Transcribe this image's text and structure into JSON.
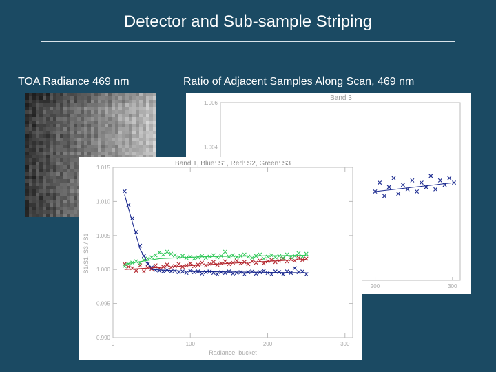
{
  "slide": {
    "title": "Detector and Sub-sample Striping",
    "caption_left": "TOA Radiance 469 nm",
    "caption_right": "Ratio of Adjacent Samples Along Scan,  469 nm"
  },
  "colors": {
    "background": "#1b4a63",
    "s1_blue": "#1b2a8f",
    "s2_red": "#b3262e",
    "s3_green": "#32c85a"
  },
  "chart_data": [
    {
      "type": "scatter",
      "title": "Band 3",
      "xlabel": "",
      "ylabel": "",
      "ylim": [
        0.998,
        1.006
      ],
      "y_ticks": [
        "1.006",
        "1.004"
      ],
      "xlim": [
        0,
        310
      ],
      "x_ticks": [
        "200",
        "300"
      ],
      "series": [
        {
          "color": "#1b2a8f",
          "marker": "x",
          "x": [
            200,
            206,
            212,
            218,
            224,
            230,
            236,
            242,
            248,
            254,
            260,
            266,
            272,
            278,
            284,
            290,
            296,
            302
          ],
          "y": [
            1.002,
            1.0024,
            1.0018,
            1.0022,
            1.0026,
            1.0019,
            1.0023,
            1.0021,
            1.0025,
            1.002,
            1.0024,
            1.0022,
            1.0027,
            1.0021,
            1.0025,
            1.0023,
            1.0026,
            1.0024
          ]
        }
      ],
      "trend": [
        [
          200,
          1.002
        ],
        [
          302,
          1.0024
        ]
      ]
    },
    {
      "type": "scatter",
      "title": "Band 1, Blue: S1, Red: S2, Green: S3",
      "xlabel": "Radiance, bucket",
      "ylabel": "S1/S1, S3 / S1",
      "xlim": [
        0,
        310
      ],
      "ylim": [
        0.99,
        1.015
      ],
      "x_ticks": [
        0,
        100,
        200,
        300
      ],
      "y_ticks": [
        0.99,
        0.995,
        1.0,
        1.005,
        1.01,
        1.015
      ],
      "y_tick_labels": [
        "0.990",
        "0.995",
        "1.000",
        "1.005",
        "1.010",
        "1.015"
      ],
      "series": [
        {
          "color": "#1b2a8f",
          "marker": "x",
          "x": [
            15,
            20,
            25,
            30,
            35,
            40,
            45,
            50,
            55,
            60,
            65,
            70,
            75,
            80,
            85,
            90,
            95,
            100,
            105,
            110,
            115,
            120,
            125,
            130,
            135,
            140,
            145,
            150,
            155,
            160,
            165,
            170,
            175,
            180,
            185,
            190,
            195,
            200,
            205,
            210,
            215,
            220,
            225,
            230,
            235,
            240,
            245,
            250
          ],
          "y": [
            1.0115,
            1.0095,
            1.0075,
            1.0055,
            1.0035,
            1.002,
            1.0008,
            1.0003,
            0.9999,
            0.9998,
            0.9997,
            0.9999,
            0.9997,
            0.9998,
            0.9996,
            0.9997,
            0.9995,
            0.9998,
            0.9996,
            0.9997,
            0.9994,
            0.9996,
            0.9997,
            0.9995,
            0.9993,
            0.9996,
            0.9995,
            0.9997,
            0.9994,
            0.9995,
            0.9996,
            0.9993,
            0.9996,
            0.9997,
            0.9994,
            0.9996,
            0.9998,
            0.9995,
            0.9993,
            0.9997,
            0.9996,
            0.9993,
            0.9997,
            0.9995,
            1.0002,
            0.9996,
            0.9997,
            0.9993
          ]
        },
        {
          "color": "#b3262e",
          "marker": "x",
          "x": [
            15,
            20,
            25,
            30,
            35,
            40,
            45,
            50,
            55,
            60,
            65,
            70,
            75,
            80,
            85,
            90,
            95,
            100,
            105,
            110,
            115,
            120,
            125,
            130,
            135,
            140,
            145,
            150,
            155,
            160,
            165,
            170,
            175,
            180,
            185,
            190,
            195,
            200,
            205,
            210,
            215,
            220,
            225,
            230,
            235,
            240,
            245,
            250
          ],
          "y": [
            1.0008,
            1.0004,
            1.0002,
            0.9998,
            1.0006,
            0.9997,
            1.0003,
            1.0001,
            1.0006,
            1.0002,
            1.0004,
            1.0007,
            1.0003,
            1.0005,
            1.0008,
            1.0004,
            1.0006,
            1.0009,
            1.0005,
            1.0007,
            1.001,
            1.0006,
            1.0008,
            1.0011,
            1.0007,
            1.0009,
            1.0012,
            1.0008,
            1.001,
            1.0013,
            1.0009,
            1.0011,
            1.0008,
            1.0012,
            1.001,
            1.0013,
            1.0009,
            1.0012,
            1.0014,
            1.0011,
            1.0013,
            1.0016,
            1.0012,
            1.0015,
            1.0013,
            1.0017,
            1.0014,
            1.0016
          ]
        },
        {
          "color": "#32c85a",
          "marker": "x",
          "x": [
            15,
            20,
            25,
            30,
            35,
            40,
            45,
            50,
            55,
            60,
            65,
            70,
            75,
            80,
            85,
            90,
            95,
            100,
            105,
            110,
            115,
            120,
            125,
            130,
            135,
            140,
            145,
            150,
            155,
            160,
            165,
            170,
            175,
            180,
            185,
            190,
            195,
            200,
            205,
            210,
            215,
            220,
            225,
            230,
            235,
            240,
            245,
            250
          ],
          "y": [
            1.0005,
            1.0008,
            1.001,
            1.0012,
            1.0009,
            1.0014,
            1.0016,
            1.0018,
            1.0021,
            1.0025,
            1.0022,
            1.0026,
            1.0023,
            1.0021,
            1.0018,
            1.002,
            1.0017,
            1.0019,
            1.0016,
            1.0018,
            1.002,
            1.0017,
            1.0019,
            1.0021,
            1.0018,
            1.002,
            1.0026,
            1.0019,
            1.0021,
            1.0018,
            1.002,
            1.0022,
            1.0019,
            1.0017,
            1.002,
            1.0022,
            1.0016,
            1.0019,
            1.0021,
            1.0018,
            1.002,
            1.0017,
            1.0022,
            1.0018,
            1.002,
            1.0024,
            1.0019,
            1.0023
          ]
        }
      ],
      "trends": [
        {
          "color": "#1b2a8f",
          "points": [
            [
              15,
              1.011
            ],
            [
              35,
              1.003
            ],
            [
              50,
              1.0
            ],
            [
              100,
              0.9997
            ],
            [
              180,
              0.9996
            ],
            [
              250,
              0.9995
            ]
          ]
        },
        {
          "color": "#b3262e",
          "points": [
            [
              15,
              1.0
            ],
            [
              60,
              1.0003
            ],
            [
              150,
              1.0009
            ],
            [
              250,
              1.0015
            ]
          ]
        },
        {
          "color": "#32c85a",
          "points": [
            [
              15,
              1.0008
            ],
            [
              60,
              1.0016
            ],
            [
              120,
              1.0019
            ],
            [
              250,
              1.0021
            ]
          ]
        }
      ]
    }
  ]
}
